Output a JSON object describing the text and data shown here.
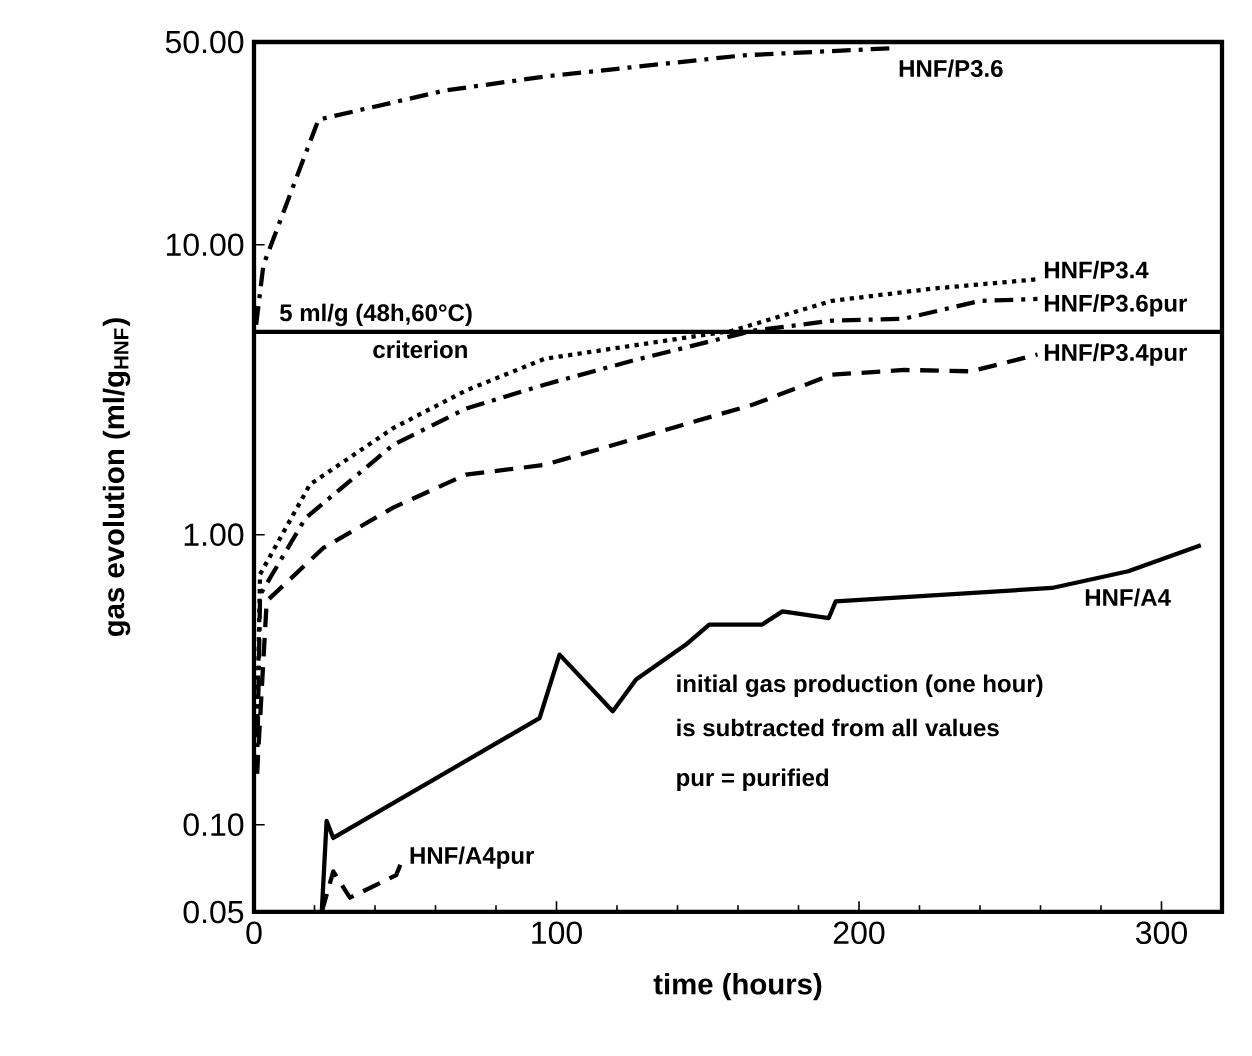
{
  "chart_data": {
    "type": "line",
    "xlabel": "time (hours)",
    "ylabel": "gas evolution (ml/g$_{HNF}$)",
    "log": "y",
    "grid": false,
    "legend": false,
    "xlim": [
      0,
      320
    ],
    "xticks": [
      0,
      100,
      200,
      300
    ],
    "ylim": [
      0.05,
      50
    ],
    "yticks": [
      {
        "value": 0.05,
        "label": "0.05"
      },
      {
        "value": 0.1,
        "label": "0.10"
      },
      {
        "value": 1,
        "label": "1.00"
      },
      {
        "value": 10,
        "label": "10.00"
      },
      {
        "value": 50,
        "label": "50.00"
      }
    ],
    "series": [
      {
        "name": "HNF/P3.6",
        "color": "#000000",
        "line_style": "dashdot",
        "x": [
          0.7,
          3.1,
          21.3,
          63,
          96,
          162,
          211
        ],
        "values": [
          5.3,
          8.5,
          27,
          34,
          38,
          45,
          47.6
        ]
      },
      {
        "name": "HNF/P3.4",
        "color": "#000000",
        "line_style": "dotted",
        "x": [
          1,
          2,
          18.5,
          46,
          70,
          96,
          158,
          191,
          224,
          259
        ],
        "values": [
          0.2,
          0.73,
          1.49,
          2.33,
          3.14,
          4.04,
          5.05,
          6.4,
          7.05,
          7.6
        ]
      },
      {
        "name": "HNF/P3.6pur",
        "color": "#000000",
        "line_style": "dashdot",
        "x": [
          1,
          2,
          17,
          46,
          70,
          96,
          125,
          165,
          191,
          215,
          240,
          259
        ],
        "values": [
          0.15,
          0.62,
          1.14,
          2.04,
          2.72,
          3.29,
          3.98,
          5.05,
          5.47,
          5.56,
          6.4,
          6.5
        ]
      },
      {
        "name": "HNF/P3.4pur",
        "color": "#000000",
        "line_style": "dashed",
        "x": [
          1,
          4.2,
          22.9,
          46,
          70,
          96,
          165,
          191,
          215,
          237,
          259
        ],
        "values": [
          0.15,
          0.59,
          0.9,
          1.24,
          1.61,
          1.74,
          2.81,
          3.56,
          3.7,
          3.66,
          4.18
        ]
      },
      {
        "name": "HNF/A4",
        "color": "#000000",
        "line_style": "solid",
        "x": [
          22.4,
          24,
          26.2,
          94.4,
          101,
          118.6,
          126.3,
          142.8,
          150.5,
          168,
          174.7,
          190,
          192.3,
          263.8,
          289,
          313
        ],
        "values": [
          0.05,
          0.103,
          0.09,
          0.233,
          0.386,
          0.246,
          0.317,
          0.418,
          0.49,
          0.49,
          0.544,
          0.516,
          0.589,
          0.655,
          0.748,
          0.92
        ]
      },
      {
        "name": "HNF/A4pur",
        "color": "#000000",
        "line_style": "dashed",
        "x": [
          22.4,
          26.2,
          31.7,
          47,
          49.3
        ],
        "values": [
          0.05,
          0.069,
          0.056,
          0.067,
          0.077
        ]
      }
    ],
    "ref_lines": [
      {
        "axis": "y",
        "value": 5,
        "label": "5 ml/g (48h,60°C)",
        "color": "#000000",
        "line_style": "solid"
      }
    ],
    "annotations": [
      {
        "text": "criterion",
        "x": 55,
        "y": 5
      },
      "initial gas production (one hour)",
      "is subtracted from all values",
      "pur = purified"
    ]
  }
}
